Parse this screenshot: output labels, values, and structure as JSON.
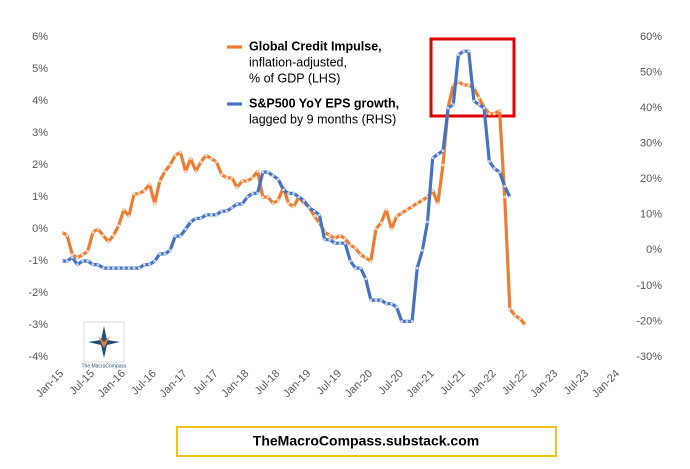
{
  "chart_data": {
    "type": "line",
    "x": [
      "2015-01",
      "2015-02",
      "2015-03",
      "2015-04",
      "2015-05",
      "2015-06",
      "2015-07",
      "2015-08",
      "2015-09",
      "2015-10",
      "2015-11",
      "2015-12",
      "2016-01",
      "2016-02",
      "2016-03",
      "2016-04",
      "2016-05",
      "2016-06",
      "2016-07",
      "2016-08",
      "2016-09",
      "2016-10",
      "2016-11",
      "2016-12",
      "2017-01",
      "2017-02",
      "2017-03",
      "2017-04",
      "2017-05",
      "2017-06",
      "2017-07",
      "2017-08",
      "2017-09",
      "2017-10",
      "2017-11",
      "2017-12",
      "2018-01",
      "2018-02",
      "2018-03",
      "2018-04",
      "2018-05",
      "2018-06",
      "2018-07",
      "2018-08",
      "2018-09",
      "2018-10",
      "2018-11",
      "2018-12",
      "2019-01",
      "2019-02",
      "2019-03",
      "2019-04",
      "2019-05",
      "2019-06",
      "2019-07",
      "2019-08",
      "2019-09",
      "2019-10",
      "2019-11",
      "2019-12",
      "2020-01",
      "2020-02",
      "2020-03",
      "2020-04",
      "2020-05",
      "2020-06",
      "2020-07",
      "2020-08",
      "2020-09",
      "2020-10",
      "2020-11",
      "2020-12",
      "2021-01",
      "2021-02",
      "2021-03",
      "2021-04",
      "2021-05",
      "2021-06",
      "2021-07",
      "2021-08",
      "2021-09",
      "2021-10",
      "2021-11",
      "2021-12",
      "2022-01",
      "2022-02",
      "2022-03",
      "2022-04",
      "2022-05",
      "2022-06",
      "2022-07"
    ],
    "series": [
      {
        "name": "Global Credit Impulse,",
        "description": [
          "inflation-adjusted,",
          "% of GDP (LHS)"
        ],
        "color": "#ed7d31",
        "axis": "y",
        "values": [
          -0.1,
          -0.2,
          -0.8,
          -0.9,
          -0.8,
          -0.7,
          -0.1,
          0.0,
          -0.2,
          -0.4,
          -0.2,
          0.1,
          0.6,
          0.4,
          1.1,
          1.1,
          1.2,
          1.4,
          0.8,
          1.5,
          1.8,
          2.0,
          2.3,
          2.4,
          1.8,
          2.2,
          1.8,
          2.1,
          2.3,
          2.2,
          2.1,
          1.7,
          1.6,
          1.6,
          1.3,
          1.5,
          1.5,
          1.6,
          1.8,
          1.0,
          1.0,
          0.8,
          0.9,
          1.3,
          0.8,
          0.7,
          1.0,
          0.8,
          0.7,
          0.4,
          0.2,
          -0.1,
          -0.2,
          -0.3,
          -0.2,
          -0.3,
          -0.5,
          -0.6,
          -0.8,
          -0.9,
          -1.0,
          0.0,
          0.2,
          0.6,
          0.0,
          0.4,
          0.5,
          0.6,
          0.7,
          0.8,
          0.9,
          1.0,
          1.2,
          0.8,
          2.0,
          3.8,
          4.5,
          4.6,
          4.5,
          4.5,
          4.4,
          4.1,
          3.8,
          3.6,
          3.6,
          3.7,
          1.0,
          -2.5,
          -2.7,
          -2.8,
          -3.0
        ]
      },
      {
        "name": "S&P500 YoY EPS growth,",
        "description": [
          "lagged by 9 months (RHS)"
        ],
        "color": "#4472c4",
        "axis": "y2",
        "values": [
          -3,
          -3,
          -2,
          -4,
          -3,
          -3,
          -4,
          -4,
          -5,
          -5,
          -5,
          -5,
          -5,
          -5,
          -5,
          -5,
          -4,
          -4,
          -3,
          -1,
          -1,
          0,
          4,
          4,
          6,
          8,
          9,
          9,
          10,
          10,
          10,
          11,
          11,
          12,
          13,
          13,
          15,
          16,
          16,
          22,
          22,
          21,
          20,
          17,
          16,
          16,
          15,
          14,
          12,
          11,
          10,
          3,
          3,
          2,
          2,
          2,
          -3,
          -5,
          -5,
          -8,
          -14,
          -14,
          -14,
          -15,
          -15,
          -16,
          -20,
          -20,
          -20,
          -5,
          0,
          8,
          26,
          27,
          28,
          40,
          41,
          55,
          56,
          56,
          42,
          41,
          40,
          25,
          23,
          22,
          18,
          15,
          null,
          null,
          null
        ]
      }
    ],
    "xlim": [
      "2015-01",
      "2024-01"
    ],
    "xticks": [
      {
        "value": "2015-01",
        "label": "Jan-15"
      },
      {
        "value": "2015-07",
        "label": "Jul-15"
      },
      {
        "value": "2016-01",
        "label": "Jan-16"
      },
      {
        "value": "2016-07",
        "label": "Jul-16"
      },
      {
        "value": "2017-01",
        "label": "Jan-17"
      },
      {
        "value": "2017-07",
        "label": "Jul-17"
      },
      {
        "value": "2018-01",
        "label": "Jan-18"
      },
      {
        "value": "2018-07",
        "label": "Jul-18"
      },
      {
        "value": "2019-01",
        "label": "Jan-19"
      },
      {
        "value": "2019-07",
        "label": "Jul-19"
      },
      {
        "value": "2020-01",
        "label": "Jan-20"
      },
      {
        "value": "2020-07",
        "label": "Jul-20"
      },
      {
        "value": "2021-01",
        "label": "Jan-21"
      },
      {
        "value": "2021-07",
        "label": "Jul-21"
      },
      {
        "value": "2022-01",
        "label": "Jan-22"
      },
      {
        "value": "2022-07",
        "label": "Jul-22"
      },
      {
        "value": "2023-01",
        "label": "Jan-23"
      },
      {
        "value": "2023-07",
        "label": "Jul-23"
      },
      {
        "value": "2024-01",
        "label": "Jan-24"
      }
    ],
    "ylim": [
      -4,
      6
    ],
    "yticks": [
      {
        "value": -4,
        "label": "-4%"
      },
      {
        "value": -3,
        "label": "-3%"
      },
      {
        "value": -2,
        "label": "-2%"
      },
      {
        "value": -1,
        "label": "-1%"
      },
      {
        "value": 0,
        "label": "0%"
      },
      {
        "value": 1,
        "label": "1%"
      },
      {
        "value": 2,
        "label": "2%"
      },
      {
        "value": 3,
        "label": "3%"
      },
      {
        "value": 4,
        "label": "4%"
      },
      {
        "value": 5,
        "label": "5%"
      },
      {
        "value": 6,
        "label": "6%"
      }
    ],
    "y2lim": [
      -30,
      60
    ],
    "y2ticks": [
      {
        "value": -30,
        "label": "-30%"
      },
      {
        "value": -20,
        "label": "-20%"
      },
      {
        "value": -10,
        "label": "-10%"
      },
      {
        "value": 0,
        "label": "0%"
      },
      {
        "value": 10,
        "label": "10%"
      },
      {
        "value": 20,
        "label": "20%"
      },
      {
        "value": 30,
        "label": "30%"
      },
      {
        "value": 40,
        "label": "40%"
      },
      {
        "value": 50,
        "label": "50%"
      },
      {
        "value": 60,
        "label": "60%"
      }
    ],
    "logo_text": "The MacroCompass",
    "footer": "TheMacroCompass.substack.com"
  }
}
